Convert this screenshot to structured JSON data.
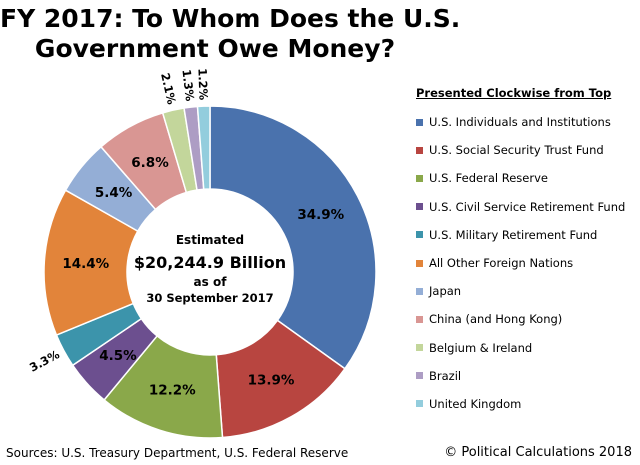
{
  "chart_data": {
    "type": "pie",
    "title_lines": [
      "FY 2017: To Whom Does the U.S.",
      "Government Owe Money?"
    ],
    "legend_title": "Presented Clockwise from Top",
    "center": {
      "line1": "Estimated",
      "line2": "$20,244.9 Billion",
      "line3": "as of",
      "line4": "30 September 2017"
    },
    "slices": [
      {
        "label": "U.S. Individuals and Institutions",
        "value": 34.9,
        "display": "34.9%",
        "color": "#4a72ad"
      },
      {
        "label": "U.S. Social Security Trust Fund",
        "value": 13.9,
        "display": "13.9%",
        "color": "#b84540"
      },
      {
        "label": "U.S. Federal Reserve",
        "value": 12.2,
        "display": "12.2%",
        "color": "#8aa84a"
      },
      {
        "label": "U.S. Civil Service Retirement Fund",
        "value": 4.5,
        "display": "4.5%",
        "color": "#6c4f8f"
      },
      {
        "label": "U.S. Military Retirement Fund",
        "value": 3.3,
        "display": "3.3%",
        "color": "#3c94ab"
      },
      {
        "label": "All Other Foreign Nations",
        "value": 14.4,
        "display": "14.4%",
        "color": "#e2843a"
      },
      {
        "label": "Japan",
        "value": 5.4,
        "display": "5.4%",
        "color": "#94aed6"
      },
      {
        "label": "China (and Hong Kong)",
        "value": 6.8,
        "display": "6.8%",
        "color": "#d99693"
      },
      {
        "label": "Belgium & Ireland",
        "value": 2.1,
        "display": "2.1%",
        "color": "#c3d69b"
      },
      {
        "label": "Brazil",
        "value": 1.3,
        "display": "1.3%",
        "color": "#ad9dc4"
      },
      {
        "label": "United Kingdom",
        "value": 1.2,
        "display": "1.2%",
        "color": "#93cddd"
      }
    ]
  },
  "footer": {
    "sources": "Sources: U.S. Treasury Department, U.S. Federal Reserve",
    "credit": "© Political Calculations 2018"
  }
}
